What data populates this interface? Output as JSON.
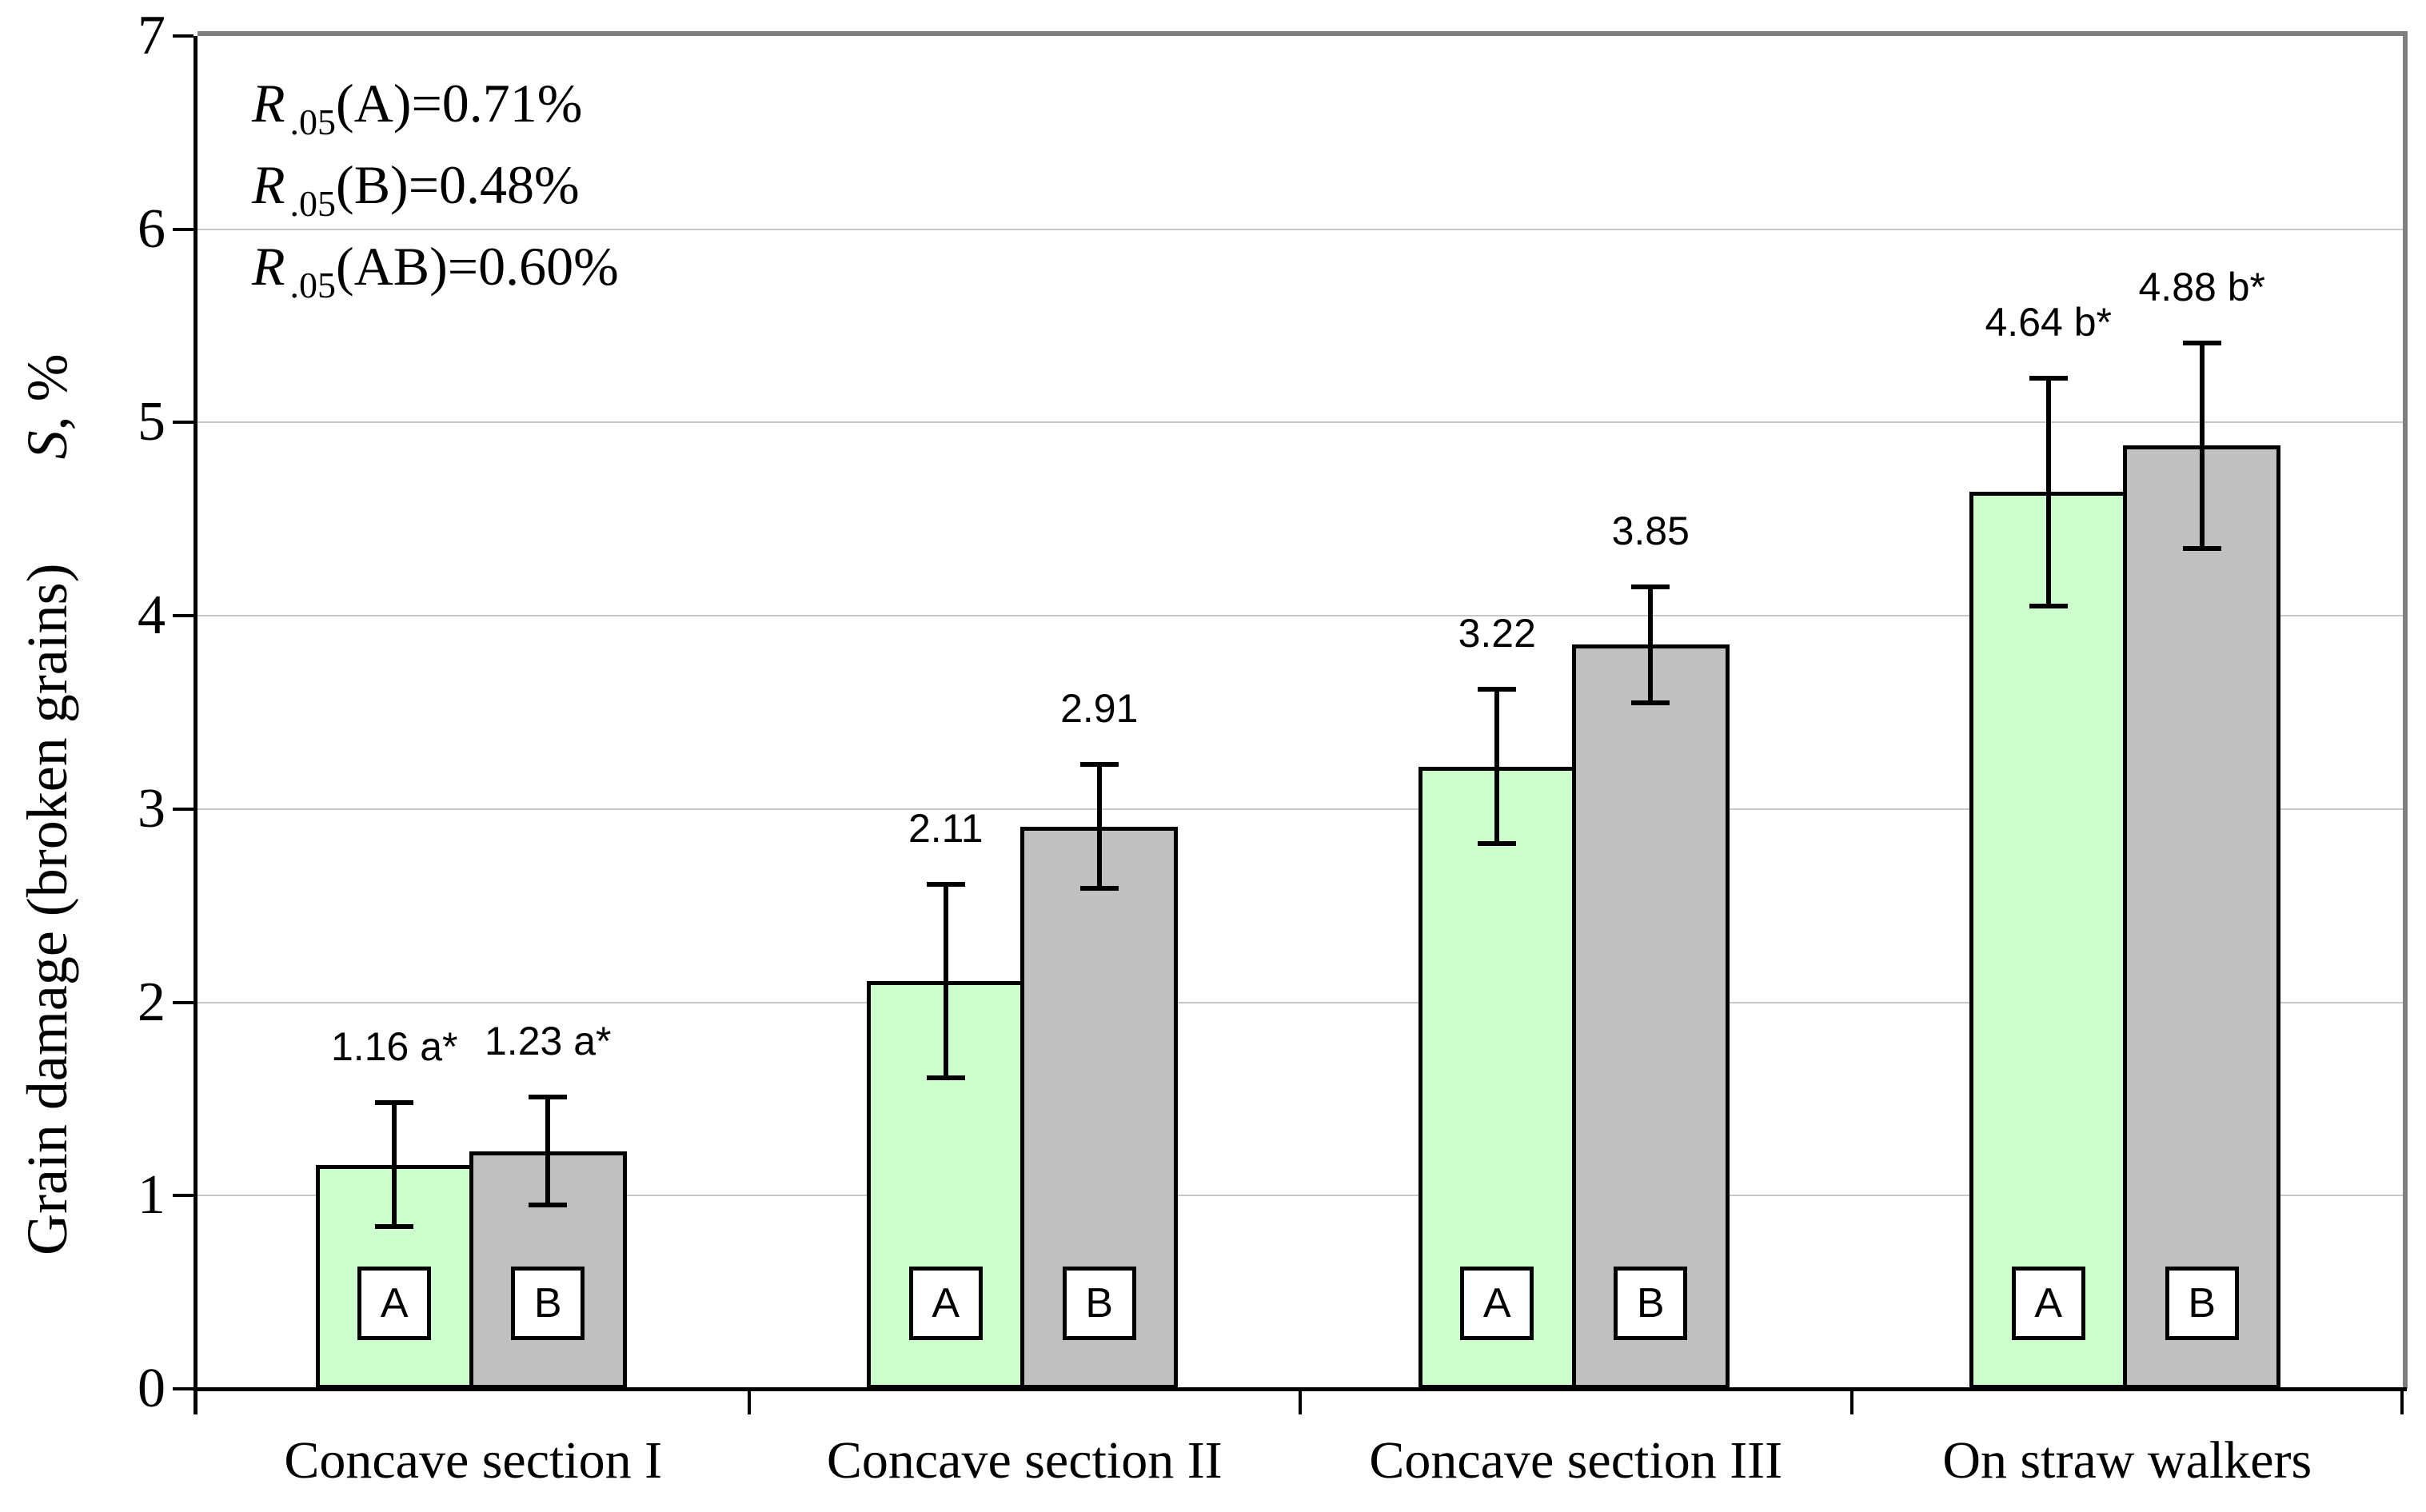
{
  "chart_data": {
    "type": "bar",
    "title": "",
    "ylabel": {
      "text": "Grain damage (broken grains)",
      "symbol_italic": "S",
      "symbol_rest": ", %"
    },
    "ylim": [
      0,
      7
    ],
    "yticks": [
      "0",
      "1",
      "2",
      "3",
      "4",
      "5",
      "6",
      "7"
    ],
    "grid": "horizontal",
    "legend_position": "inside-bars",
    "categories": [
      "Concave section I",
      "Concave section II",
      "Concave section III",
      "On straw walkers"
    ],
    "series": [
      {
        "name": "A",
        "fill": "#ccffcc",
        "values": [
          1.16,
          2.11,
          3.22,
          4.64
        ],
        "errors": [
          0.32,
          0.5,
          0.4,
          0.59
        ],
        "point_labels": [
          "1.16 a*",
          "2.11",
          "3.22",
          "4.64 b*"
        ]
      },
      {
        "name": "B",
        "fill": "#c0c0c0",
        "values": [
          1.23,
          2.91,
          3.85,
          4.88
        ],
        "errors": [
          0.28,
          0.32,
          0.3,
          0.53
        ],
        "point_labels": [
          "1.23 a*",
          "2.91",
          "3.85",
          "4.88 b*"
        ]
      }
    ],
    "annotations": [
      {
        "prefix": "R",
        "sub": ".05",
        "rest": "(A)=0.71%"
      },
      {
        "prefix": "R",
        "sub": ".05",
        "rest": "(B)=0.48%"
      },
      {
        "prefix": "R",
        "sub": ".05",
        "rest": "(AB)=0.60%"
      }
    ],
    "colors": {
      "plot_border": "#7f7f7f",
      "gridline": "#c8c8c8",
      "axis": "#000000",
      "bar_border": "#000000",
      "series_a_fill": "#ccffcc",
      "series_b_fill": "#c0c0c0"
    }
  }
}
